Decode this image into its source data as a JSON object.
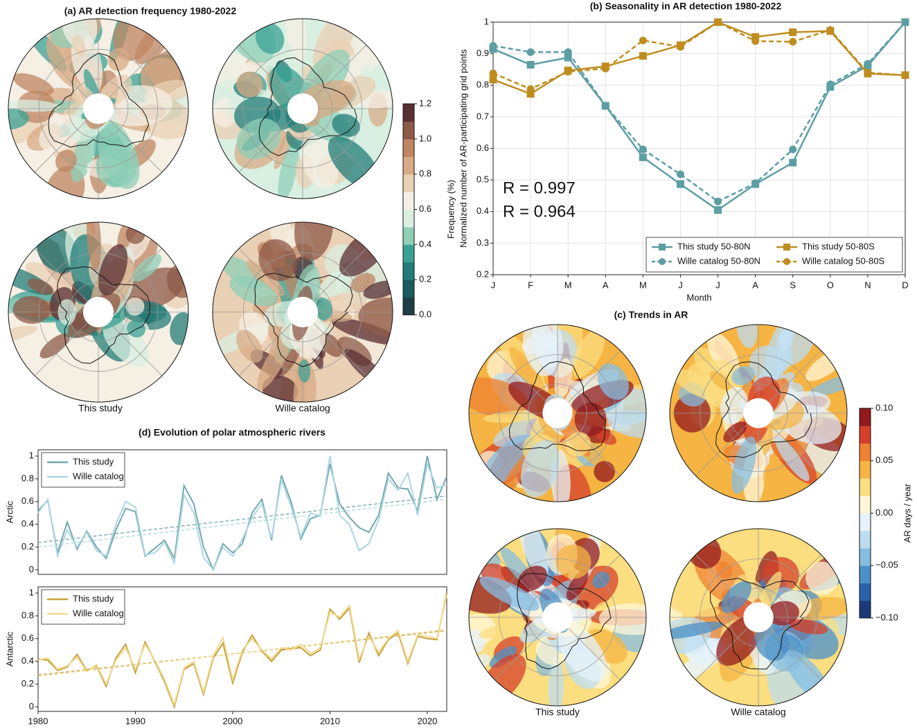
{
  "chart_data": [
    {
      "type": "map",
      "title": "(a) AR detection frequency 1980-2022",
      "panel_labels": [
        "This study",
        "Wille catalog"
      ],
      "colorbar": {
        "label": "Frequency (%)",
        "lim": [
          0,
          1.2
        ],
        "ticks": [
          {
            "value": 0,
            "label": "0.0"
          },
          0.2,
          0.4,
          0.6,
          0.8,
          {
            "value": 1,
            "label": "1.0"
          },
          1.2
        ],
        "colors": [
          "#1f3d44",
          "#1d5c5e",
          "#237c78",
          "#3aa194",
          "#8fcfb8",
          "#d9efe2",
          "#f5efe4",
          "#ead0b4",
          "#d8ab86",
          "#bf8663",
          "#8d5a48",
          "#5a2f34"
        ]
      }
    },
    {
      "type": "line",
      "title": "(b) Seasonality in AR detection 1980-2022",
      "xlabel": "Month",
      "ylabel": "Normalized number of AR-participating grid points",
      "categories": [
        "J",
        "F",
        "M",
        "A",
        "M",
        "J",
        "J",
        "A",
        "S",
        "O",
        "N",
        "D"
      ],
      "ylim": [
        0.2,
        1
      ],
      "yticks": [
        0.2,
        0.3,
        0.4,
        0.5,
        0.6,
        0.7,
        0.8,
        0.9,
        1
      ],
      "grid": true,
      "legend": "lower right",
      "legend_columns": 2,
      "series": [
        {
          "name": "This study 50-80N",
          "color": "#5b9ea3",
          "marker": "square",
          "linestyle": "solid",
          "values": [
            0.915,
            0.865,
            0.888,
            0.735,
            0.572,
            0.487,
            0.405,
            0.487,
            0.555,
            0.795,
            0.862,
            1.0
          ]
        },
        {
          "name": "Wille catalog 50-80N",
          "color": "#5b9ea3",
          "marker": "circle",
          "linestyle": "dashed",
          "values": [
            0.925,
            0.905,
            0.905,
            0.735,
            0.597,
            0.518,
            0.432,
            0.49,
            0.597,
            0.803,
            0.868,
            1.0
          ]
        },
        {
          "name": "This study 50-80S",
          "color": "#bf8d1f",
          "marker": "square",
          "linestyle": "solid",
          "values": [
            0.818,
            0.773,
            0.847,
            0.86,
            0.893,
            0.927,
            1.0,
            0.953,
            0.968,
            0.972,
            0.837,
            0.832
          ]
        },
        {
          "name": "Wille catalog 50-80S",
          "color": "#bf8d1f",
          "marker": "circle",
          "linestyle": "dashed",
          "values": [
            0.838,
            0.788,
            0.843,
            0.853,
            0.942,
            0.922,
            1.0,
            0.94,
            0.938,
            0.975,
            0.84,
            0.832
          ]
        }
      ],
      "annotations": [
        {
          "text": "R = 0.997",
          "color": "#5b9ea3"
        },
        {
          "text": "R = 0.964",
          "color": "#bf8d1f"
        }
      ]
    },
    {
      "type": "map",
      "title": "(c) Trends in AR",
      "panel_labels": [
        "This study",
        "Wille catalog"
      ],
      "colorbar": {
        "label": "AR days / year",
        "lim": [
          -0.1,
          0.1
        ],
        "ticks": [
          {
            "value": -0.1,
            "label": "−0.10"
          },
          {
            "value": -0.05,
            "label": "−0.05"
          },
          {
            "value": 0,
            "label": "0.00"
          },
          0.05,
          {
            "value": 0.1,
            "label": "0.10"
          }
        ],
        "colors": [
          "#1c3a78",
          "#2a62a8",
          "#4b90c8",
          "#87bde0",
          "#bcdcf0",
          "#e6f2f9",
          "#fff7d8",
          "#fbde80",
          "#f6b443",
          "#ee8230",
          "#d6402a",
          "#921a1e"
        ]
      }
    },
    {
      "type": "line",
      "title": "(d) Evolution of polar atmospheric rivers",
      "ylabel": "Arctic",
      "x": [
        1980,
        1981,
        1982,
        1983,
        1984,
        1985,
        1986,
        1987,
        1988,
        1989,
        1990,
        1991,
        1992,
        1993,
        1994,
        1995,
        1996,
        1997,
        1998,
        1999,
        2000,
        2001,
        2002,
        2003,
        2004,
        2005,
        2006,
        2007,
        2008,
        2009,
        2010,
        2011,
        2012,
        2013,
        2014,
        2015,
        2016,
        2017,
        2018,
        2019,
        2020,
        2021,
        2022
      ],
      "xlim": [
        1980,
        2022
      ],
      "ylim": [
        -0.04,
        1.055
      ],
      "yticks": [
        0,
        0.2,
        0.4,
        0.6,
        0.8,
        1
      ],
      "grid": false,
      "legend": "upper left",
      "series": [
        {
          "name": "This study",
          "color": "#72a8ad",
          "linestyle": "solid",
          "trend": [
            0.24,
            0.65
          ],
          "values": [
            0.52,
            0.61,
            0.15,
            0.42,
            0.18,
            0.34,
            0.2,
            0.1,
            0.35,
            0.54,
            0.51,
            0.12,
            0.19,
            0.26,
            0.1,
            0.74,
            0.58,
            0.2,
            0.0,
            0.23,
            0.15,
            0.23,
            0.5,
            0.62,
            0.26,
            0.83,
            0.6,
            0.27,
            0.45,
            0.48,
            0.93,
            0.58,
            0.46,
            0.37,
            0.33,
            0.48,
            0.85,
            0.72,
            0.71,
            0.52,
            1.0,
            0.62,
            0.82
          ]
        },
        {
          "name": "Wille catalog",
          "color": "#acd6e2",
          "linestyle": "solid",
          "trend": [
            0.2,
            0.62
          ],
          "values": [
            0.5,
            0.62,
            0.12,
            0.35,
            0.2,
            0.33,
            0.17,
            0.12,
            0.4,
            0.6,
            0.55,
            0.13,
            0.15,
            0.24,
            0.06,
            0.66,
            0.5,
            0.11,
            0.0,
            0.2,
            0.12,
            0.27,
            0.46,
            0.58,
            0.28,
            0.79,
            0.56,
            0.29,
            0.5,
            0.47,
            1.0,
            0.48,
            0.4,
            0.17,
            0.23,
            0.44,
            0.8,
            0.7,
            0.85,
            0.48,
            0.93,
            0.72,
            0.75
          ]
        }
      ]
    },
    {
      "type": "line",
      "ylabel": "Antarctic",
      "x": [
        1980,
        1981,
        1982,
        1983,
        1984,
        1985,
        1986,
        1987,
        1988,
        1989,
        1990,
        1991,
        1992,
        1993,
        1994,
        1995,
        1996,
        1997,
        1998,
        1999,
        2000,
        2001,
        2002,
        2003,
        2004,
        2005,
        2006,
        2007,
        2008,
        2009,
        2010,
        2011,
        2012,
        2013,
        2014,
        2015,
        2016,
        2017,
        2018,
        2019,
        2020,
        2021,
        2022
      ],
      "xlim": [
        1980,
        2022
      ],
      "xticks": [
        1980,
        1990,
        2000,
        2010,
        2020
      ],
      "ylim": [
        -0.04,
        1.055
      ],
      "yticks": [
        0,
        0.2,
        0.4,
        0.6,
        0.8,
        1
      ],
      "grid": false,
      "legend": "upper left",
      "series": [
        {
          "name": "This study",
          "color": "#c7a03a",
          "linestyle": "solid",
          "trend": [
            0.28,
            0.67
          ],
          "values": [
            0.42,
            0.41,
            0.32,
            0.35,
            0.46,
            0.32,
            0.36,
            0.18,
            0.43,
            0.55,
            0.3,
            0.57,
            0.4,
            0.22,
            0.0,
            0.33,
            0.38,
            0.11,
            0.43,
            0.56,
            0.21,
            0.48,
            0.63,
            0.49,
            0.4,
            0.5,
            0.51,
            0.52,
            0.45,
            0.5,
            0.86,
            0.77,
            0.87,
            0.39,
            0.65,
            0.45,
            0.59,
            0.65,
            0.38,
            0.62,
            0.6,
            0.59,
            1.0
          ]
        },
        {
          "name": "Wille catalog",
          "color": "#f2da8e",
          "linestyle": "solid",
          "trend": [
            0.27,
            0.68
          ],
          "values": [
            0.41,
            0.43,
            0.33,
            0.36,
            0.44,
            0.31,
            0.37,
            0.2,
            0.41,
            0.52,
            0.33,
            0.55,
            0.41,
            0.24,
            0.02,
            0.34,
            0.4,
            0.13,
            0.45,
            0.61,
            0.24,
            0.5,
            0.6,
            0.5,
            0.42,
            0.52,
            0.5,
            0.55,
            0.47,
            0.52,
            0.83,
            0.79,
            0.89,
            0.42,
            0.62,
            0.48,
            0.6,
            0.67,
            0.4,
            0.63,
            0.62,
            0.6,
            0.98
          ]
        }
      ]
    }
  ]
}
